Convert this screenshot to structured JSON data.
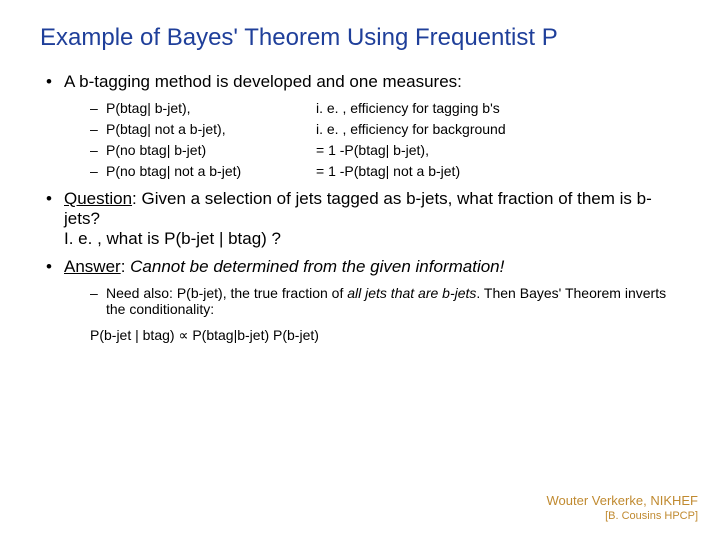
{
  "colors": {
    "title": "#1f3f9a",
    "body": "#000000",
    "attr": "#c08a30",
    "bg": "#ffffff"
  },
  "title": "Example of Bayes' Theorem Using Frequentist P",
  "b1": "A b-tagging method is developed and one measures:",
  "rows": [
    {
      "l": "P(btag| b-jet),",
      "r": "i. e. , efficiency for tagging b's"
    },
    {
      "l": "P(btag| not a b-jet),",
      "r": "i. e. , efficiency for background"
    },
    {
      "l": "P(no btag| b-jet)",
      "r": "= 1 -P(btag| b-jet),"
    },
    {
      "l": "P(no btag| not a b-jet)",
      "r": "= 1 -P(btag| not a b-jet)"
    }
  ],
  "q_label": "Question",
  "q_text": ": Given a selection of jets tagged as b-jets, what fraction of them is b-jets?",
  "q_text2": "I. e. , what is P(b-jet | btag) ?",
  "a_label": "Answer",
  "a_sep": ": ",
  "a_text": "Cannot be determined from the given information!",
  "need_pre": "Need also: P(b-jet), the true fraction of ",
  "need_it": "all jets that are b-jets",
  "need_post": ". Then Bayes' Theorem inverts the conditionality:",
  "prop": "P(b-jet | btag) ∝ P(btag|b-jet) P(b-jet)",
  "attr1": "Wouter Verkerke, NIKHEF",
  "attr2": "[B. Cousins HPCP]",
  "dash": "–",
  "dot": "•"
}
